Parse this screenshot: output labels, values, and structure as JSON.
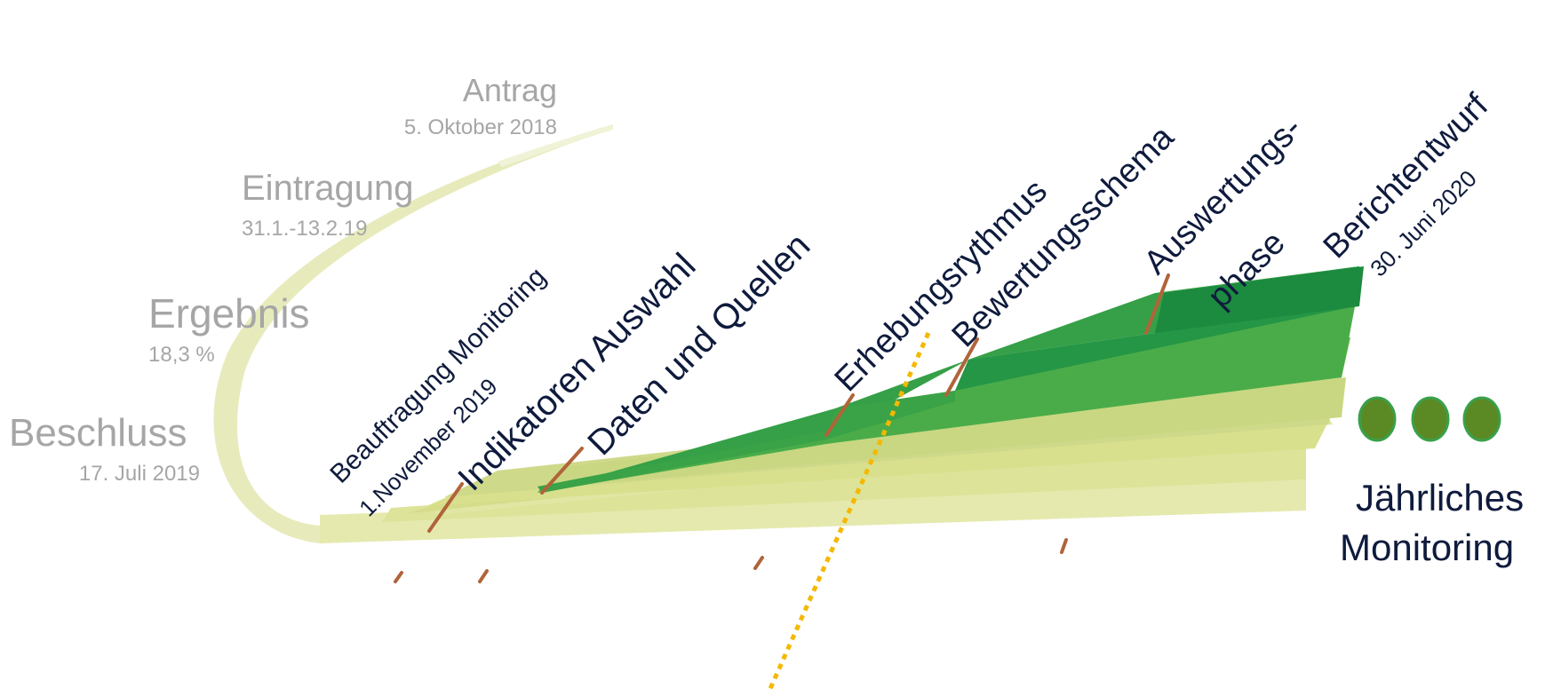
{
  "colors": {
    "past_text": "#a6a6a6",
    "label_text": "#0f1b3d",
    "arc": "#dfe4a6",
    "band_lightest": "#e3e8a8",
    "band_light": "#d2dc8c",
    "band_mid": "#5cb14c",
    "band_green": "#3fa64a",
    "band_dark": "#269a45",
    "band_darkest": "#1a8a3e",
    "tick": "#b0643a",
    "dotted_line": "#f5b800",
    "dots": "#5b8a24",
    "dots_border": "#3aa04a"
  },
  "past_milestones": [
    {
      "title": "Antrag",
      "date": "5. Oktober 2018"
    },
    {
      "title": "Eintragung",
      "date": "31.1.-13.2.19"
    },
    {
      "title": "Ergebnis",
      "date": "18,3 %"
    },
    {
      "title": "Beschluss",
      "date": "17. Juli 2019"
    }
  ],
  "phases": {
    "beauftragung": {
      "title": "Beauftragung Monitoring",
      "date": "1.November 2019"
    },
    "indikatoren": "Indikatoren Auswahl",
    "daten": "Daten und Quellen",
    "erhebung": "Erhebungsrythmus",
    "bewertung": "Bewertungsschema",
    "auswertung_line1": "Auswertungs-",
    "auswertung_line2": "phase",
    "bericht": {
      "title": "Berichtentwurf",
      "date": "30. Juni 2020"
    }
  },
  "annual": {
    "line1": "Jährliches",
    "line2": "Monitoring"
  }
}
